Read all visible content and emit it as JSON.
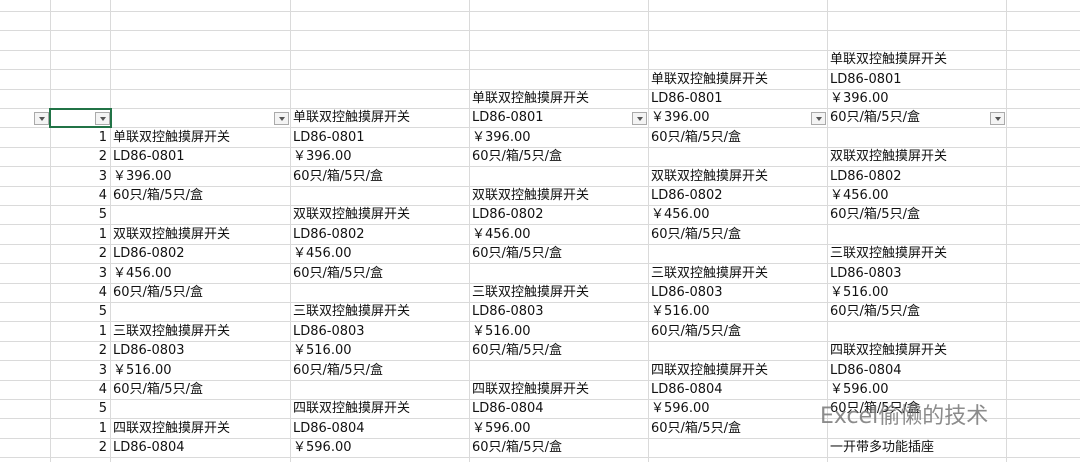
{
  "sheet": {
    "rows": [
      [
        null,
        null,
        null,
        null,
        null,
        null
      ],
      [
        null,
        null,
        null,
        null,
        null,
        null
      ],
      [
        null,
        null,
        null,
        null,
        null,
        null
      ],
      [
        null,
        null,
        null,
        null,
        null,
        "单联双控触摸屏开关"
      ],
      [
        null,
        null,
        null,
        null,
        "单联双控触摸屏开关",
        "LD86-0801"
      ],
      [
        null,
        null,
        null,
        "单联双控触摸屏开关",
        "LD86-0801",
        "￥396.00"
      ],
      [
        null,
        null,
        "单联双控触摸屏开关",
        "LD86-0801",
        "￥396.00",
        "60只/箱/5只/盒"
      ],
      [
        1,
        "单联双控触摸屏开关",
        "LD86-0801",
        "￥396.00",
        "60只/箱/5只/盒",
        null
      ],
      [
        2,
        "LD86-0801",
        "￥396.00",
        "60只/箱/5只/盒",
        null,
        "双联双控触摸屏开关"
      ],
      [
        3,
        "￥396.00",
        "60只/箱/5只/盒",
        null,
        "双联双控触摸屏开关",
        "LD86-0802"
      ],
      [
        4,
        "60只/箱/5只/盒",
        null,
        "双联双控触摸屏开关",
        "LD86-0802",
        "￥456.00"
      ],
      [
        5,
        null,
        "双联双控触摸屏开关",
        "LD86-0802",
        "￥456.00",
        "60只/箱/5只/盒"
      ],
      [
        1,
        "双联双控触摸屏开关",
        "LD86-0802",
        "￥456.00",
        "60只/箱/5只/盒",
        null
      ],
      [
        2,
        "LD86-0802",
        "￥456.00",
        "60只/箱/5只/盒",
        null,
        "三联双控触摸屏开关"
      ],
      [
        3,
        "￥456.00",
        "60只/箱/5只/盒",
        null,
        "三联双控触摸屏开关",
        "LD86-0803"
      ],
      [
        4,
        "60只/箱/5只/盒",
        null,
        "三联双控触摸屏开关",
        "LD86-0803",
        "￥516.00"
      ],
      [
        5,
        null,
        "三联双控触摸屏开关",
        "LD86-0803",
        "￥516.00",
        "60只/箱/5只/盒"
      ],
      [
        1,
        "三联双控触摸屏开关",
        "LD86-0803",
        "￥516.00",
        "60只/箱/5只/盒",
        null
      ],
      [
        2,
        "LD86-0803",
        "￥516.00",
        "60只/箱/5只/盒",
        null,
        "四联双控触摸屏开关"
      ],
      [
        3,
        "￥516.00",
        "60只/箱/5只/盒",
        null,
        "四联双控触摸屏开关",
        "LD86-0804"
      ],
      [
        4,
        "60只/箱/5只/盒",
        null,
        "四联双控触摸屏开关",
        "LD86-0804",
        "￥596.00"
      ],
      [
        5,
        null,
        "四联双控触摸屏开关",
        "LD86-0804",
        "￥596.00",
        "60只/箱/5只/盒"
      ],
      [
        1,
        "四联双控触摸屏开关",
        "LD86-0804",
        "￥596.00",
        "60只/箱/5只/盒",
        null
      ],
      [
        2,
        "LD86-0804",
        "￥596.00",
        "60只/箱/5只/盒",
        null,
        "一开带多功能插座"
      ]
    ],
    "watermark": "Excel偷懒的技术"
  }
}
